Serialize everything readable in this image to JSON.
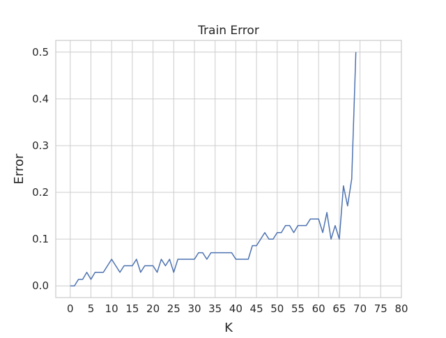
{
  "chart_data": {
    "type": "line",
    "title": "Train Error",
    "xlabel": "K",
    "ylabel": "Error",
    "xlim": [
      -3.5,
      80
    ],
    "ylim": [
      -0.025,
      0.525
    ],
    "xticks": [
      0,
      5,
      10,
      15,
      20,
      25,
      30,
      35,
      40,
      45,
      50,
      55,
      60,
      65,
      70,
      75,
      80
    ],
    "yticks": [
      0.0,
      0.1,
      0.2,
      0.3,
      0.4,
      0.5
    ],
    "xtick_labels": [
      "0",
      "5",
      "10",
      "15",
      "20",
      "25",
      "30",
      "35",
      "40",
      "45",
      "50",
      "55",
      "60",
      "65",
      "70",
      "75",
      "80"
    ],
    "ytick_labels": [
      "0.0",
      "0.1",
      "0.2",
      "0.3",
      "0.4",
      "0.5"
    ],
    "grid": true,
    "line_color": "#4c72b0",
    "series": [
      {
        "x": [
          0,
          1,
          2,
          3,
          4,
          5,
          6,
          7,
          8,
          9,
          10,
          11,
          12,
          13,
          14,
          15,
          16,
          17,
          18,
          19,
          20,
          21,
          22,
          23,
          24,
          25,
          26,
          27,
          28,
          29,
          30,
          31,
          32,
          33,
          34,
          35,
          36,
          37,
          38,
          39,
          40,
          41,
          42,
          43,
          44,
          45,
          46,
          47,
          48,
          49,
          50,
          51,
          52,
          53,
          54,
          55,
          56,
          57,
          58,
          59,
          60,
          61,
          62,
          63,
          64,
          65,
          66,
          67,
          68,
          69
        ],
        "y": [
          0.0,
          0.0,
          0.014,
          0.014,
          0.029,
          0.014,
          0.029,
          0.029,
          0.029,
          0.043,
          0.057,
          0.043,
          0.029,
          0.043,
          0.043,
          0.043,
          0.057,
          0.029,
          0.043,
          0.043,
          0.043,
          0.029,
          0.057,
          0.043,
          0.057,
          0.029,
          0.057,
          0.057,
          0.057,
          0.057,
          0.057,
          0.071,
          0.071,
          0.057,
          0.071,
          0.071,
          0.071,
          0.071,
          0.071,
          0.071,
          0.057,
          0.057,
          0.057,
          0.057,
          0.086,
          0.086,
          0.1,
          0.114,
          0.1,
          0.1,
          0.114,
          0.114,
          0.129,
          0.129,
          0.114,
          0.129,
          0.129,
          0.129,
          0.143,
          0.143,
          0.143,
          0.114,
          0.157,
          0.1,
          0.129,
          0.1,
          0.214,
          0.171,
          0.229,
          0.5
        ]
      }
    ]
  }
}
